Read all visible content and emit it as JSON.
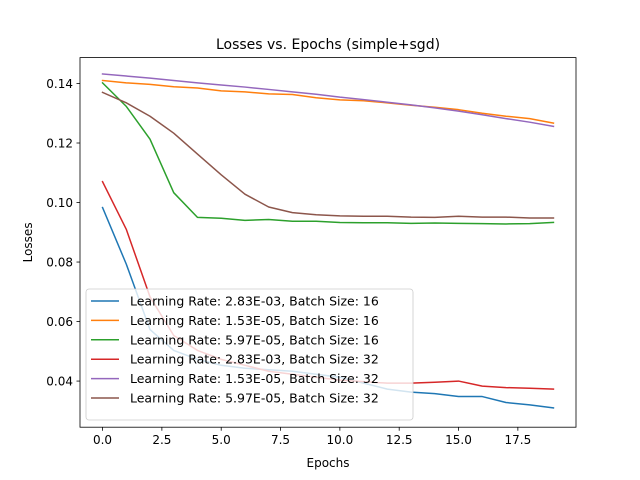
{
  "chart_data": {
    "type": "line",
    "title": "Losses vs. Epochs (simple+sgd)",
    "xlabel": "Epochs",
    "ylabel": "Losses",
    "xlim": [
      -0.95,
      19.95
    ],
    "ylim": [
      0.0245,
      0.1487
    ],
    "xticks": [
      0,
      2.5,
      5,
      7.5,
      10,
      12.5,
      15,
      17.5
    ],
    "xtick_labels": [
      "0.0",
      "2.5",
      "5.0",
      "7.5",
      "10.0",
      "12.5",
      "15.0",
      "17.5"
    ],
    "yticks": [
      0.04,
      0.06,
      0.08,
      0.1,
      0.12,
      0.14
    ],
    "ytick_labels": [
      "0.04",
      "0.06",
      "0.08",
      "0.10",
      "0.12",
      "0.14"
    ],
    "grid": false,
    "legend_position": "lower-left",
    "x": [
      0,
      1,
      2,
      3,
      4,
      5,
      6,
      7,
      8,
      9,
      10,
      11,
      12,
      13,
      14,
      15,
      16,
      17,
      18,
      19
    ],
    "series": [
      {
        "name": "Learning Rate: 2.83E-03, Batch Size: 16",
        "color": "#1f77b4",
        "values": [
          0.0983,
          0.0793,
          0.0573,
          0.0503,
          0.0473,
          0.0453,
          0.0443,
          0.0438,
          0.0433,
          0.0423,
          0.0413,
          0.0393,
          0.0373,
          0.0363,
          0.0358,
          0.0348,
          0.0348,
          0.0328,
          0.032,
          0.031
        ]
      },
      {
        "name": "Learning Rate: 1.53E-05, Batch Size: 16",
        "color": "#ff7f0e",
        "values": [
          0.141,
          0.1402,
          0.1397,
          0.1389,
          0.1385,
          0.1375,
          0.1372,
          0.1365,
          0.1363,
          0.1352,
          0.1345,
          0.1342,
          0.1335,
          0.1327,
          0.132,
          0.1312,
          0.13,
          0.129,
          0.1282,
          0.1267
        ]
      },
      {
        "name": "Learning Rate: 5.97E-05, Batch Size: 16",
        "color": "#2ca02c",
        "values": [
          0.1402,
          0.1323,
          0.1213,
          0.1033,
          0.095,
          0.0947,
          0.094,
          0.0943,
          0.0937,
          0.0937,
          0.0933,
          0.0932,
          0.0932,
          0.093,
          0.0931,
          0.093,
          0.0929,
          0.0928,
          0.0929,
          0.0933
        ]
      },
      {
        "name": "Learning Rate: 2.83E-03, Batch Size: 32",
        "color": "#d62728",
        "values": [
          0.107,
          0.091,
          0.0683,
          0.0553,
          0.0503,
          0.0473,
          0.0453,
          0.0433,
          0.0423,
          0.0413,
          0.0403,
          0.0398,
          0.0393,
          0.0393,
          0.0396,
          0.04,
          0.0383,
          0.0378,
          0.0376,
          0.0373
        ]
      },
      {
        "name": "Learning Rate: 1.53E-05, Batch Size: 32",
        "color": "#9467bd",
        "values": [
          0.1432,
          0.1425,
          0.1418,
          0.141,
          0.1402,
          0.1395,
          0.1388,
          0.138,
          0.1372,
          0.1364,
          0.1354,
          0.1346,
          0.1337,
          0.1328,
          0.1318,
          0.1307,
          0.1295,
          0.1282,
          0.127,
          0.1256
        ]
      },
      {
        "name": "Learning Rate: 5.97E-05, Batch Size: 32",
        "color": "#8c564b",
        "values": [
          0.137,
          0.1335,
          0.129,
          0.1233,
          0.1163,
          0.1093,
          0.1028,
          0.0985,
          0.0966,
          0.0959,
          0.0955,
          0.0954,
          0.0954,
          0.0951,
          0.095,
          0.0954,
          0.0951,
          0.0951,
          0.0948,
          0.0948
        ]
      }
    ]
  }
}
